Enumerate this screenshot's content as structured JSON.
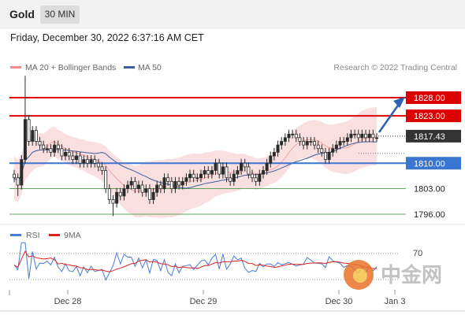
{
  "header": {
    "symbol": "Gold",
    "timeframe_label": "30 MIN"
  },
  "datetime": "Friday, December 30, 2022 6:37:16 AM CET",
  "legend": {
    "ma20": "MA 20 + Bollinger Bands",
    "ma50": "MA 50"
  },
  "credit": "Research © 2022 Trading Central",
  "rsi_legend": {
    "rsi": "RSI",
    "ma": "9MA"
  },
  "rsi_level_label": "70",
  "watermark": "中金网",
  "colors": {
    "resistance": "#dd0000",
    "support_blue": "#3a75d1",
    "support_green": "#2e8b2e",
    "band": "#f7d4d4",
    "ma50": "#3a5fa0",
    "arrow": "#2b62b4",
    "price_tag": "#333333"
  },
  "chart_data": {
    "type": "candlestick",
    "price_axis_levels": [
      {
        "label": "1828.00",
        "value": 1828.0,
        "style": "resistance"
      },
      {
        "label": "1823.00",
        "value": 1823.0,
        "style": "resistance"
      },
      {
        "label": "1817.43",
        "value": 1817.43,
        "style": "current"
      },
      {
        "label": "1810.00",
        "value": 1810.0,
        "style": "support_blue"
      },
      {
        "label": "1803.00",
        "value": 1803.0,
        "style": "support_green"
      },
      {
        "label": "1796.00",
        "value": 1796.0,
        "style": "support_green"
      }
    ],
    "ylim": [
      1793,
      1832
    ],
    "x_ticks": [
      "Dec 28",
      "Dec 29",
      "Dec 30",
      "Jan 3"
    ],
    "close": [
      1806,
      1804,
      1811,
      1822,
      1816,
      1819,
      1816,
      1815,
      1814,
      1814,
      1813,
      1815,
      1814,
      1812,
      1813,
      1812,
      1811,
      1812,
      1810,
      1811,
      1810,
      1811,
      1810,
      1809,
      1808,
      1803,
      1800,
      1799,
      1802,
      1801,
      1803,
      1804,
      1805,
      1803,
      1804,
      1802,
      1803,
      1800,
      1802,
      1804,
      1803,
      1806,
      1805,
      1803,
      1805,
      1804,
      1805,
      1806,
      1807,
      1806,
      1806,
      1807,
      1808,
      1807,
      1808,
      1810,
      1807,
      1809,
      1806,
      1805,
      1807,
      1808,
      1810,
      1809,
      1807,
      1806,
      1805,
      1807,
      1808,
      1810,
      1812,
      1813,
      1815,
      1816,
      1817,
      1818,
      1818,
      1817,
      1816,
      1815,
      1816,
      1816,
      1815,
      1814,
      1813,
      1811,
      1813,
      1814,
      1815,
      1816,
      1816,
      1817,
      1818,
      1818,
      1817,
      1818,
      1817,
      1818,
      1817,
      1817
    ],
    "ma20_ma50": "shown as smooth lines",
    "rsi": {
      "levels": [
        70
      ],
      "series": [
        "RSI",
        "9MA"
      ]
    }
  }
}
